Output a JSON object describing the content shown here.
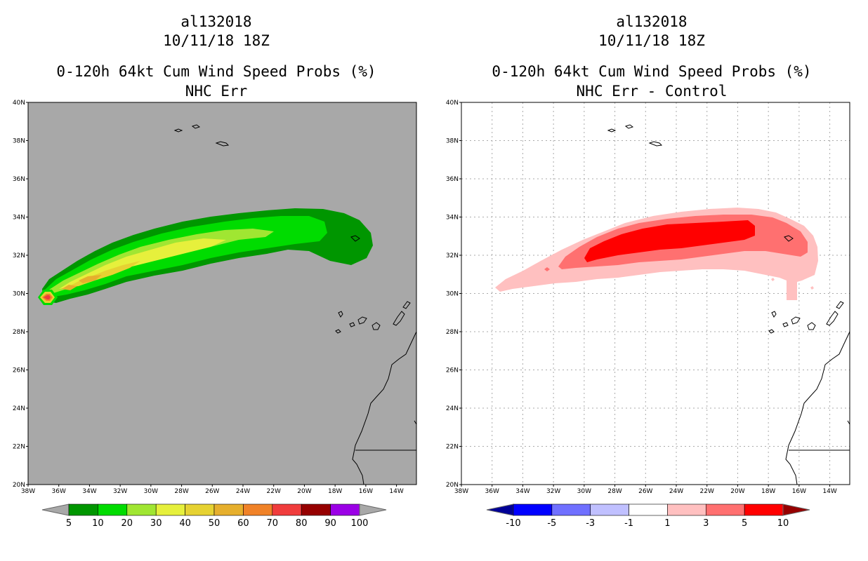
{
  "panels": [
    {
      "storm_id": "al132018",
      "datetime": "10/11/18 18Z",
      "product": "0-120h 64kt Cum Wind Speed Probs (%)",
      "subtitle": "NHC Err",
      "background": "#a8a8a8",
      "gridlines": false,
      "colorbar": {
        "colors": [
          "#009600",
          "#00dc00",
          "#a0e632",
          "#e6f03c",
          "#e6d232",
          "#e6af2d",
          "#f08228",
          "#f03c3c",
          "#960000",
          "#9b00e6"
        ],
        "labels": [
          "5",
          "10",
          "20",
          "30",
          "40",
          "50",
          "60",
          "70",
          "80",
          "90",
          "100"
        ],
        "end_arrow_color": "#a8a8a8"
      }
    },
    {
      "storm_id": "al132018",
      "datetime": "10/11/18 18Z",
      "product": "0-120h 64kt Cum Wind Speed Probs (%)",
      "subtitle": "NHC Err - Control",
      "background": "#ffffff",
      "gridlines": true,
      "colorbar": {
        "colors": [
          "#0000ff",
          "#7070ff",
          "#c0c0ff",
          "#ffffff",
          "#ffc0c0",
          "#ff7070",
          "#ff0000"
        ],
        "labels": [
          "-10",
          "-5",
          "-3",
          "-1",
          "1",
          "3",
          "5",
          "10"
        ],
        "left_arrow_color": "#000096",
        "right_arrow_color": "#960000"
      }
    }
  ],
  "axes": {
    "lat_labels": [
      "20N",
      "22N",
      "24N",
      "26N",
      "28N",
      "30N",
      "32N",
      "34N",
      "36N",
      "38N",
      "40N"
    ],
    "lon_labels": [
      "38W",
      "36W",
      "34W",
      "32W",
      "30W",
      "28W",
      "26W",
      "24W",
      "22W",
      "20W",
      "18W",
      "16W",
      "14W"
    ]
  }
}
